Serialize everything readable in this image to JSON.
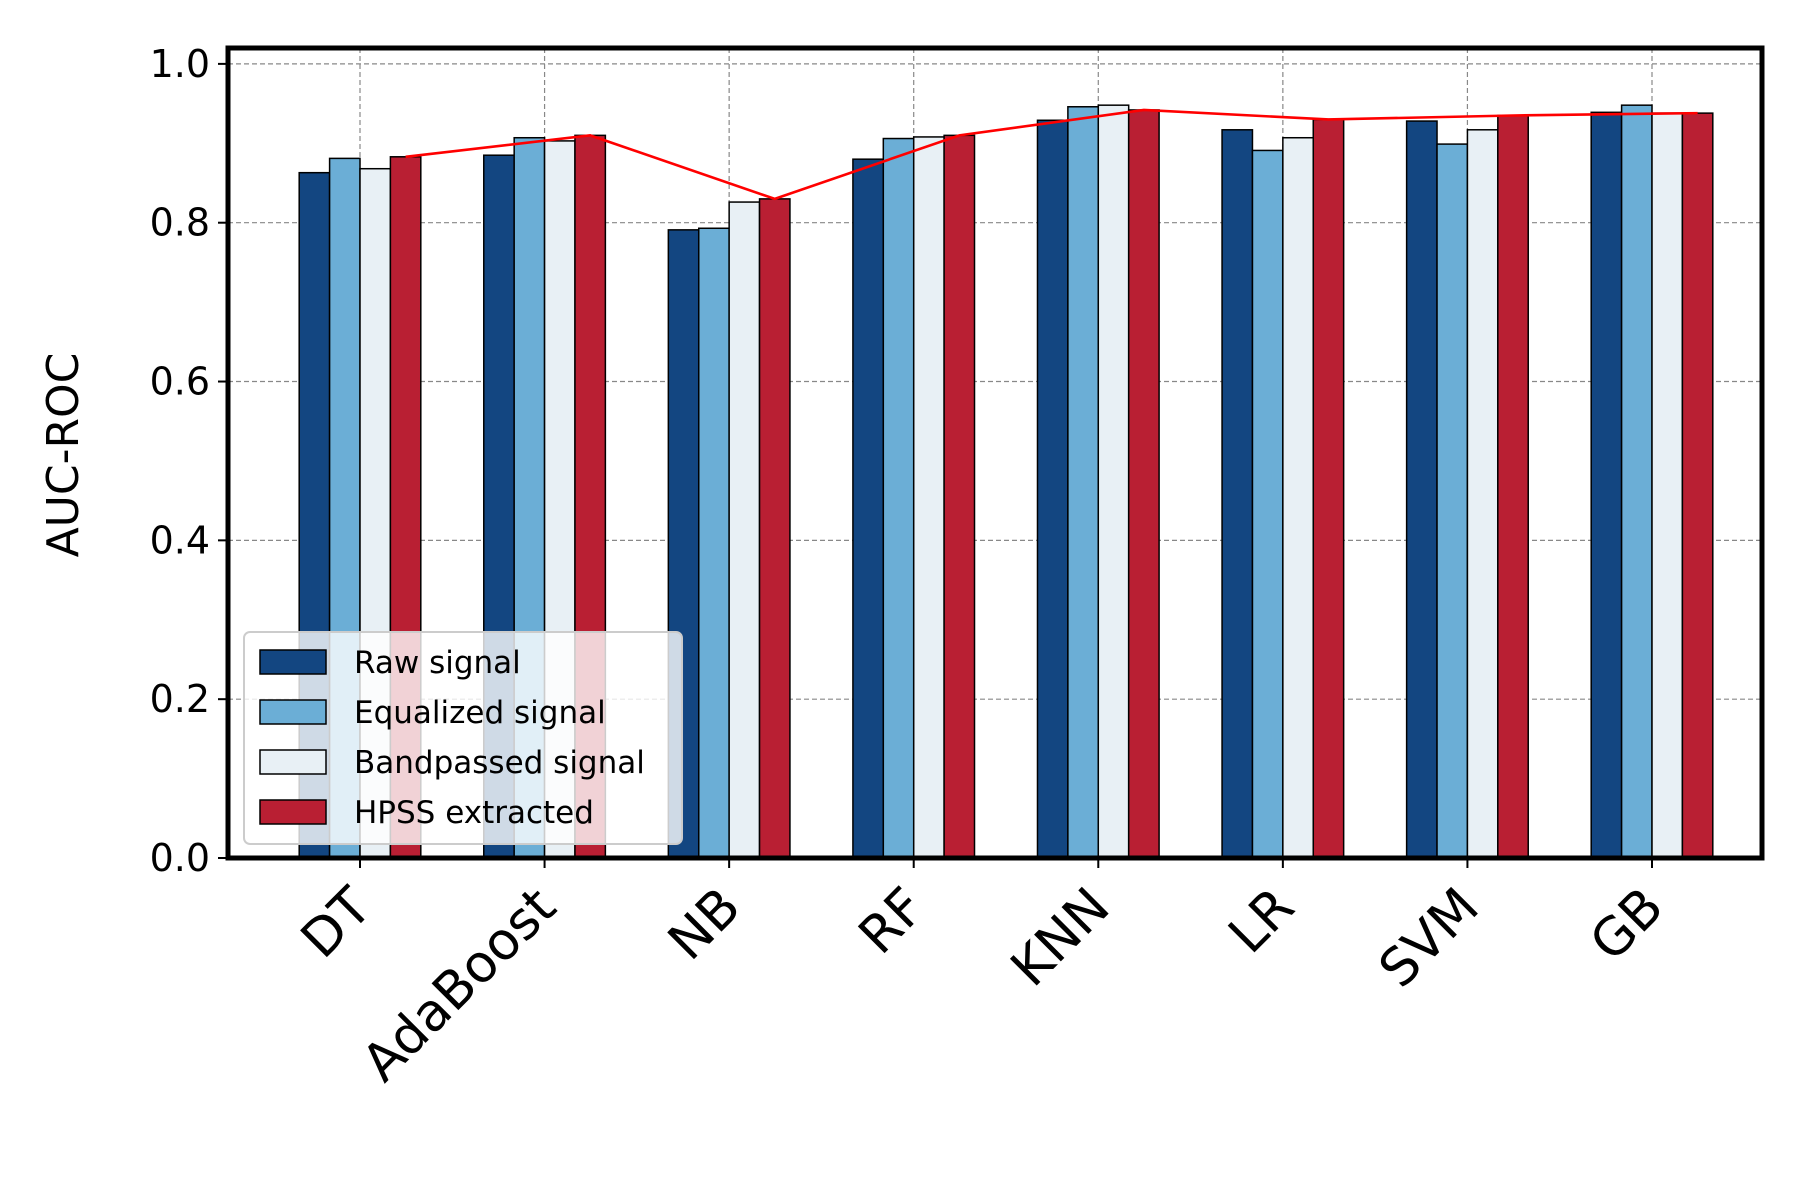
{
  "chart_data": {
    "type": "bar",
    "ylabel": "AUC-ROC",
    "xlabel": "",
    "title": "",
    "ylim": [
      0,
      1.02
    ],
    "yticks": [
      "0.0",
      "0.2",
      "0.4",
      "0.6",
      "0.8",
      "1.0"
    ],
    "grid": true,
    "legend_position": "lower-left",
    "categories": [
      "DT",
      "AdaBoost",
      "NB",
      "RF",
      "KNN",
      "LR",
      "SVM",
      "GB"
    ],
    "series": [
      {
        "name": "Raw signal",
        "color": "#134681",
        "values": [
          0.863,
          0.885,
          0.791,
          0.88,
          0.929,
          0.917,
          0.928,
          0.939
        ]
      },
      {
        "name": "Equalized signal",
        "color": "#6baed6",
        "values": [
          0.881,
          0.907,
          0.793,
          0.906,
          0.946,
          0.891,
          0.899,
          0.948
        ]
      },
      {
        "name": "Bandpassed signal",
        "color": "#e8f0f5",
        "values": [
          0.868,
          0.903,
          0.826,
          0.908,
          0.948,
          0.907,
          0.917,
          0.938
        ]
      },
      {
        "name": "HPSS extracted",
        "color": "#b91f33",
        "values": [
          0.883,
          0.91,
          0.83,
          0.91,
          0.942,
          0.93,
          0.935,
          0.938
        ]
      }
    ],
    "trend_line": {
      "series": "HPSS extracted",
      "color": "#ff0000"
    }
  }
}
